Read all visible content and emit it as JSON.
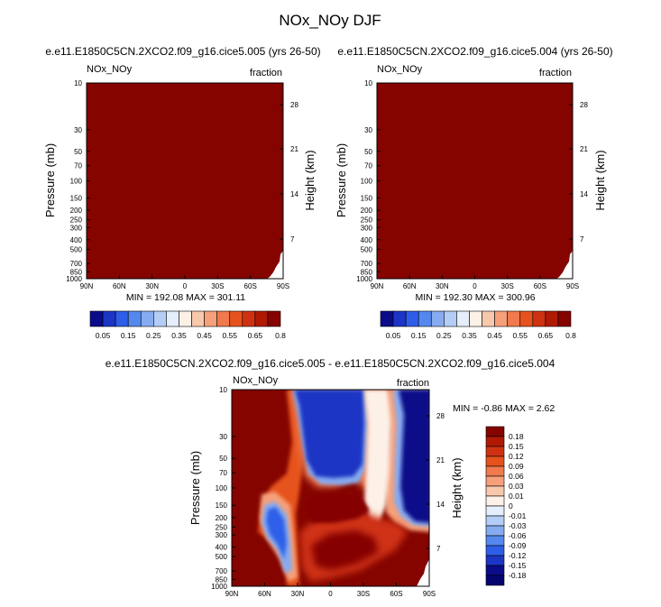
{
  "page": {
    "title": "NOx_NOy DJF"
  },
  "colors": {
    "dark_red": "#850400",
    "plot_border": "#000000"
  },
  "chart_data": [
    {
      "id": "panel1",
      "type": "heatmap",
      "title": "e.e11.E1850C5CN.2XCO2.f09_g16.cice5.005 (yrs 26-50)",
      "left_label": "NOx_NOy",
      "right_label": "fraction",
      "ylabel": "Pressure (mb)",
      "ylabel_right": "Height (km)",
      "x_ticks": [
        "90N",
        "60N",
        "30N",
        "0",
        "30S",
        "60S",
        "90S"
      ],
      "y_ticks": [
        "10",
        "30",
        "50",
        "70",
        "100",
        "150",
        "200",
        "250",
        "300",
        "400",
        "500",
        "700",
        "850",
        "1000"
      ],
      "y_ticks_right": [
        "28",
        "21",
        "14",
        "7"
      ],
      "ylim": [
        1000,
        10
      ],
      "stats": "MIN = 192.08   MAX = 301.11",
      "colorbar": {
        "labels": [
          "0.05",
          "0.15",
          "0.25",
          "0.35",
          "0.45",
          "0.55",
          "0.65",
          "0.8"
        ],
        "colors": [
          "#0a0c8a",
          "#1c35c4",
          "#2e5ee8",
          "#5588ee",
          "#86abf0",
          "#b4cdf7",
          "#e5eefc",
          "#fdf0e6",
          "#f8c8ad",
          "#f5a07a",
          "#f07a4d",
          "#e6521d",
          "#cf3212",
          "#b01a05",
          "#850400"
        ]
      }
    },
    {
      "id": "panel2",
      "type": "heatmap",
      "title": "e.e11.E1850C5CN.2XCO2.f09_g16.cice5.004 (yrs 26-50)",
      "left_label": "NOx_NOy",
      "right_label": "fraction",
      "ylabel": "Pressure (mb)",
      "ylabel_right": "Height (km)",
      "x_ticks": [
        "90N",
        "60N",
        "30N",
        "0",
        "30S",
        "60S",
        "90S"
      ],
      "y_ticks": [
        "10",
        "30",
        "50",
        "70",
        "100",
        "150",
        "200",
        "250",
        "300",
        "400",
        "500",
        "700",
        "850",
        "1000"
      ],
      "y_ticks_right": [
        "28",
        "21",
        "14",
        "7"
      ],
      "ylim": [
        1000,
        10
      ],
      "stats": "MIN = 192.30   MAX = 300.96",
      "colorbar": {
        "labels": [
          "0.05",
          "0.15",
          "0.25",
          "0.35",
          "0.45",
          "0.55",
          "0.65",
          "0.8"
        ],
        "colors": [
          "#0a0c8a",
          "#1c35c4",
          "#2e5ee8",
          "#5588ee",
          "#86abf0",
          "#b4cdf7",
          "#e5eefc",
          "#fdf0e6",
          "#f8c8ad",
          "#f5a07a",
          "#f07a4d",
          "#e6521d",
          "#cf3212",
          "#b01a05",
          "#850400"
        ]
      }
    },
    {
      "id": "panel3",
      "type": "heatmap",
      "title": "e.e11.E1850C5CN.2XCO2.f09_g16.cice5.005 - e.e11.E1850C5CN.2XCO2.f09_g16.cice5.004",
      "left_label": "NOx_NOy",
      "right_label": "fraction",
      "ylabel": "Pressure (mb)",
      "ylabel_right": "Height (km)",
      "x_ticks": [
        "90N",
        "60N",
        "30N",
        "0",
        "30S",
        "60S",
        "90S"
      ],
      "y_ticks": [
        "10",
        "30",
        "50",
        "70",
        "100",
        "150",
        "200",
        "250",
        "300",
        "400",
        "500",
        "700",
        "850",
        "1000"
      ],
      "y_ticks_right": [
        "28",
        "21",
        "14",
        "7"
      ],
      "ylim": [
        1000,
        10
      ],
      "stats": "MIN =  -0.86   MAX =   2.62",
      "colorbar": {
        "labels": [
          "0.18",
          "0.15",
          "0.12",
          "0.09",
          "0.06",
          "0.03",
          "0.01",
          "0",
          "-0.01",
          "-0.03",
          "-0.06",
          "-0.09",
          "-0.12",
          "-0.15",
          "-0.18"
        ],
        "colors": [
          "#850400",
          "#b01a05",
          "#cf3212",
          "#e6521d",
          "#f07a4d",
          "#f5a07a",
          "#f8c8ad",
          "#fdf0e6",
          "#e5eefc",
          "#b4cdf7",
          "#86abf0",
          "#5588ee",
          "#2e5ee8",
          "#1c35c4",
          "#0a0c8a",
          "#050570"
        ]
      }
    }
  ]
}
